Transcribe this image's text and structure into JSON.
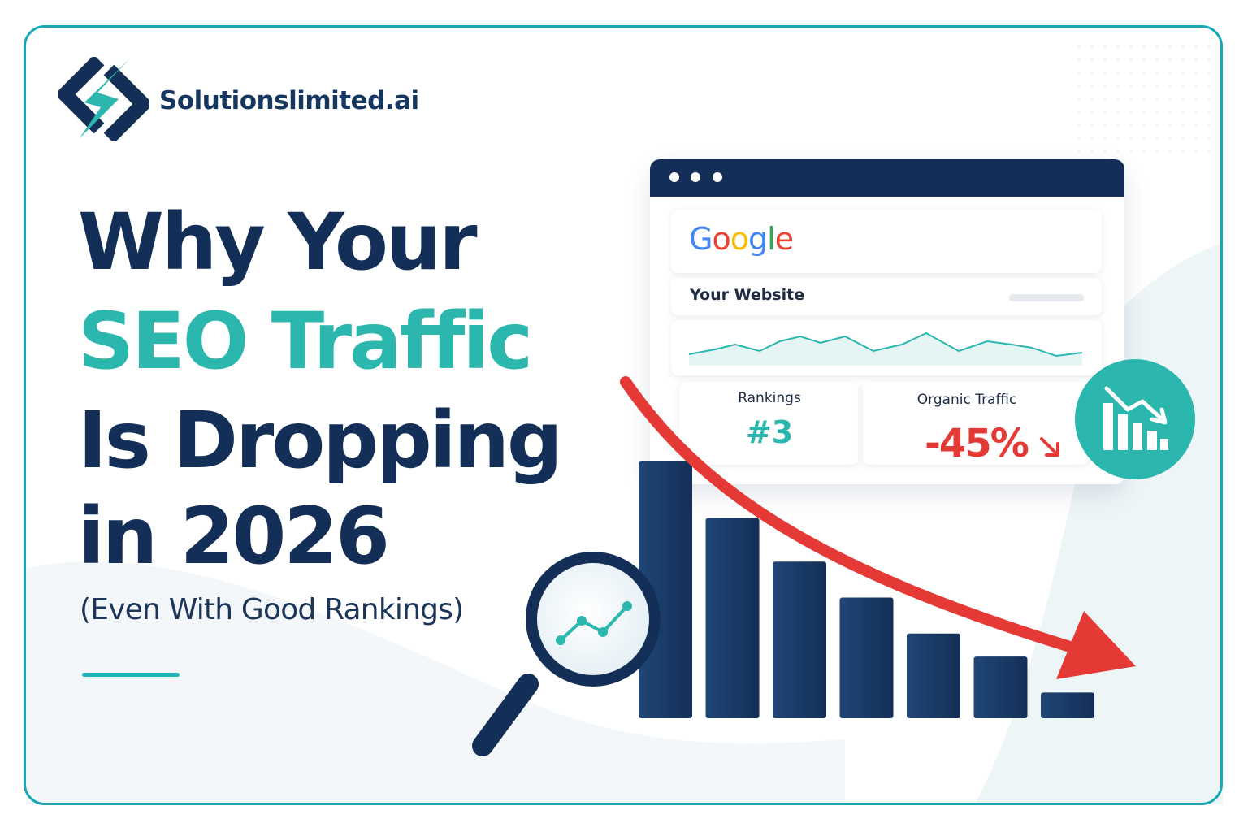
{
  "brand": {
    "name": "Solutionslimited.ai",
    "logo_icon": "brand-logo-icon"
  },
  "headline": {
    "line1": "Why Your",
    "line2": "SEO Traffic",
    "line3": "Is Dropping",
    "line4": "in 2026",
    "subtitle": "(Even With Good Rankings)"
  },
  "browser": {
    "search_engine": {
      "letters": [
        "G",
        "o",
        "o",
        "g",
        "l",
        "e"
      ]
    },
    "site_label": "Your Website",
    "rankings": {
      "label": "Rankings",
      "value": "#3"
    },
    "organic_traffic": {
      "label": "Organic Traffic",
      "value": "-45%"
    },
    "badge_icon": "declining-chart-icon"
  },
  "decline_chart": {
    "relative_bar_heights": [
      1.0,
      0.78,
      0.61,
      0.47,
      0.33,
      0.24,
      0.1
    ],
    "trend": "down"
  },
  "colors": {
    "navy": "#142f57",
    "teal": "#2bb6ae",
    "red": "#e53935",
    "frame": "#1aa6b4"
  }
}
